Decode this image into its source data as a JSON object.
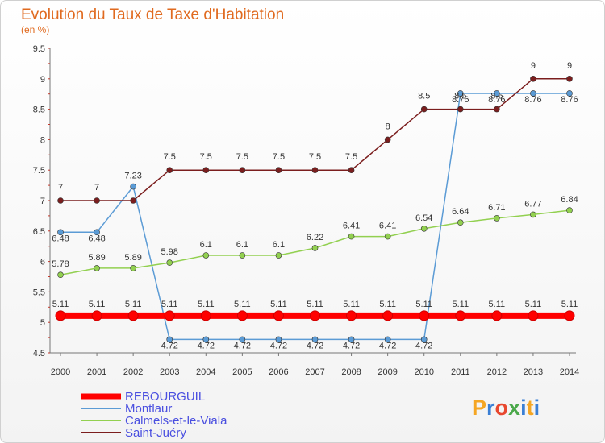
{
  "chart_data": {
    "type": "line",
    "title": "Evolution du Taux de Taxe d'Habitation",
    "unit_label": "(en %)",
    "x": [
      "2000",
      "2001",
      "2002",
      "2003",
      "2004",
      "2005",
      "2006",
      "2007",
      "2008",
      "2009",
      "2010",
      "2011",
      "2012",
      "2013",
      "2014"
    ],
    "y_ticks": [
      "4.5",
      "5",
      "5.5",
      "6",
      "6.5",
      "7",
      "7.5",
      "8",
      "8.5",
      "9",
      "9.5"
    ],
    "ylim": [
      4.5,
      9.5
    ],
    "grid": false,
    "legend_position": "bottom-left",
    "series": [
      {
        "name": "REBOURGUIL",
        "color": "#ff0000",
        "values": [
          5.11,
          5.11,
          5.11,
          5.11,
          5.11,
          5.11,
          5.11,
          5.11,
          5.11,
          5.11,
          5.11,
          5.11,
          5.11,
          5.11,
          5.11
        ],
        "labels": [
          "5.11",
          "5.11",
          "5.11",
          "5.11",
          "5.11",
          "5.11",
          "5.11",
          "5.11",
          "5.11",
          "5.11",
          "5.11",
          "5.11",
          "5.11",
          "5.11",
          "5.11"
        ]
      },
      {
        "name": "Montlaur",
        "color": "#5b9bd5",
        "values": [
          6.48,
          6.48,
          7.23,
          4.72,
          4.72,
          4.72,
          4.72,
          4.72,
          4.72,
          4.72,
          4.72,
          8.76,
          8.76,
          8.76,
          8.76
        ],
        "labels": [
          "6.48",
          "6.48",
          "7.23",
          "4.72",
          "4.72",
          "4.72",
          "4.72",
          "4.72",
          "4.72",
          "4.72",
          "4.72",
          "8.76",
          "8.76",
          "8.76",
          "8.76"
        ]
      },
      {
        "name": "Calmels-et-le-Viala",
        "color": "#92d050",
        "values": [
          5.78,
          5.89,
          5.89,
          5.98,
          6.1,
          6.1,
          6.1,
          6.22,
          6.41,
          6.41,
          6.54,
          6.64,
          6.71,
          6.77,
          6.84
        ],
        "labels": [
          "5.78",
          "5.89",
          "5.89",
          "5.98",
          "6.1",
          "6.1",
          "6.1",
          "6.22",
          "6.41",
          "6.41",
          "6.54",
          "6.64",
          "6.71",
          "6.77",
          "6.84"
        ]
      },
      {
        "name": "Saint-Juéry",
        "color": "#7b1e1e",
        "values": [
          7,
          7,
          7,
          7.5,
          7.5,
          7.5,
          7.5,
          7.5,
          7.5,
          8,
          8.5,
          8.5,
          8.5,
          9,
          9
        ],
        "labels": [
          "7",
          "7",
          "",
          "7.5",
          "7.5",
          "7.5",
          "7.5",
          "7.5",
          "7.5",
          "8",
          "8.5",
          "8.5",
          "8.5",
          "9",
          "9"
        ]
      }
    ]
  },
  "logo": {
    "text": "Proxiti"
  }
}
